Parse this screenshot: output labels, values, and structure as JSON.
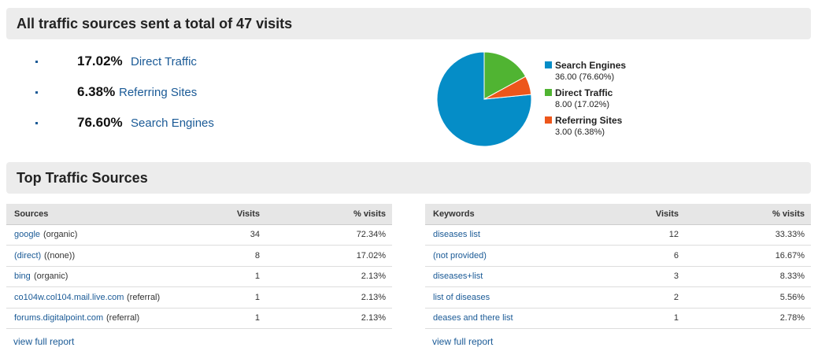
{
  "header": {
    "title": "All traffic sources sent a total of 47 visits"
  },
  "summary": [
    {
      "percent": "17.02%",
      "label": "Direct Traffic"
    },
    {
      "percent": "6.38%",
      "label": "Referring Sites"
    },
    {
      "percent": "76.60%",
      "label": "Search Engines"
    }
  ],
  "chart_data": {
    "type": "pie",
    "categories": [
      "Search Engines",
      "Direct Traffic",
      "Referring Sites"
    ],
    "values": [
      36,
      8,
      3
    ],
    "value_labels": [
      "36.00 (76.60%)",
      "8.00 (17.02%)",
      "3.00 (6.38%)"
    ],
    "colors": [
      "#058dc7",
      "#50b432",
      "#ed561b"
    ]
  },
  "section": {
    "title": "Top Traffic Sources"
  },
  "sources_table": {
    "headers": [
      "Sources",
      "Visits",
      "% visits"
    ],
    "rows": [
      {
        "source": "google",
        "medium": "(organic)",
        "visits": 34,
        "percent": "72.34%"
      },
      {
        "source": "(direct)",
        "medium": "((none))",
        "visits": 8,
        "percent": "17.02%"
      },
      {
        "source": "bing",
        "medium": "(organic)",
        "visits": 1,
        "percent": "2.13%"
      },
      {
        "source": "co104w.col104.mail.live.com",
        "medium": "(referral)",
        "visits": 1,
        "percent": "2.13%"
      },
      {
        "source": "forums.digitalpoint.com",
        "medium": "(referral)",
        "visits": 1,
        "percent": "2.13%"
      }
    ],
    "link": "view full report"
  },
  "keywords_table": {
    "headers": [
      "Keywords",
      "Visits",
      "% visits"
    ],
    "rows": [
      {
        "keyword": "diseases list",
        "visits": 12,
        "percent": "33.33%"
      },
      {
        "keyword": "(not provided)",
        "visits": 6,
        "percent": "16.67%"
      },
      {
        "keyword": "diseases+list",
        "visits": 3,
        "percent": "8.33%"
      },
      {
        "keyword": "list of diseases",
        "visits": 2,
        "percent": "5.56%"
      },
      {
        "keyword": "deases and there list",
        "visits": 1,
        "percent": "2.78%"
      }
    ],
    "link": "view full report"
  }
}
